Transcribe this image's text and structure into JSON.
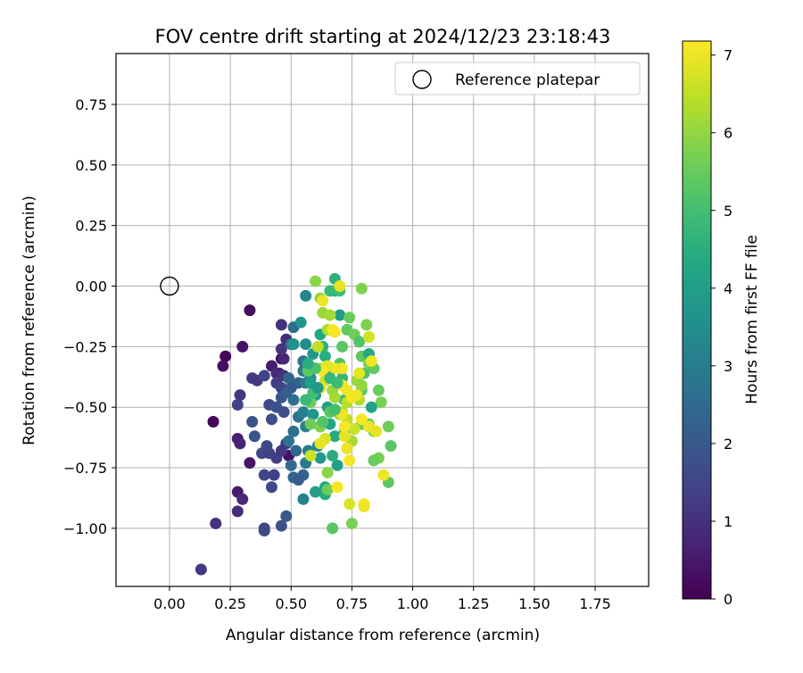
{
  "chart_data": {
    "type": "scatter",
    "title": "FOV centre drift starting at 2024/12/23 23:18:43",
    "xlabel": "Angular distance from reference (arcmin)",
    "ylabel": "Rotation from reference (arcmin)",
    "xlim": [
      -0.22,
      1.97
    ],
    "ylim": [
      -1.24,
      0.96
    ],
    "x_ticks": [
      0.0,
      0.25,
      0.5,
      0.75,
      1.0,
      1.25,
      1.5,
      1.75
    ],
    "x_tick_labels": [
      "0.00",
      "0.25",
      "0.50",
      "0.75",
      "1.00",
      "1.25",
      "1.50",
      "1.75"
    ],
    "y_ticks": [
      0.75,
      0.5,
      0.25,
      0.0,
      -0.25,
      -0.5,
      -0.75,
      -1.0
    ],
    "y_tick_labels": [
      "0.75",
      "0.50",
      "0.25",
      "0.00",
      "−0.25",
      "−0.50",
      "−0.75",
      "−1.00"
    ],
    "grid": true,
    "legend": {
      "placement": "top-right",
      "entries": [
        "Reference platepar"
      ]
    },
    "reference_point": {
      "x": 0.0,
      "y": 0.0,
      "label": "Reference platepar"
    },
    "colorbar": {
      "label": "Hours from first FF file",
      "colormap": "viridis",
      "range": [
        0,
        7.18
      ],
      "ticks": [
        0,
        1,
        2,
        3,
        4,
        5,
        6,
        7
      ],
      "tick_labels": [
        "0",
        "1",
        "2",
        "3",
        "4",
        "5",
        "6",
        "7"
      ]
    },
    "points": [
      [
        0.18,
        -0.56,
        0.1
      ],
      [
        0.23,
        -0.29,
        0.1
      ],
      [
        0.22,
        -0.33,
        0.3
      ],
      [
        0.33,
        -0.1,
        0.2
      ],
      [
        0.3,
        -0.25,
        0.4
      ],
      [
        0.46,
        -0.3,
        0.2
      ],
      [
        0.45,
        -0.36,
        0.3
      ],
      [
        0.49,
        -0.7,
        0.3
      ],
      [
        0.33,
        -0.73,
        0.4
      ],
      [
        0.28,
        -0.85,
        0.5
      ],
      [
        0.3,
        -0.88,
        0.8
      ],
      [
        0.28,
        -0.93,
        0.9
      ],
      [
        0.19,
        -0.98,
        1.0
      ],
      [
        0.13,
        -1.17,
        1.2
      ],
      [
        0.28,
        -0.63,
        0.6
      ],
      [
        0.29,
        -0.65,
        0.7
      ],
      [
        0.29,
        -0.45,
        1.2
      ],
      [
        0.28,
        -0.49,
        1.4
      ],
      [
        0.34,
        -0.38,
        1.3
      ],
      [
        0.36,
        -0.39,
        1.2
      ],
      [
        0.42,
        -0.33,
        0.6
      ],
      [
        0.44,
        -0.36,
        0.9
      ],
      [
        0.47,
        -0.3,
        0.8
      ],
      [
        0.48,
        -0.22,
        0.9
      ],
      [
        0.46,
        -0.16,
        1.0
      ],
      [
        0.46,
        -0.26,
        1.1
      ],
      [
        0.47,
        -0.37,
        1.0
      ],
      [
        0.44,
        -0.4,
        1.3
      ],
      [
        0.46,
        -0.42,
        1.4
      ],
      [
        0.39,
        -0.37,
        1.5
      ],
      [
        0.41,
        -0.49,
        1.6
      ],
      [
        0.42,
        -0.55,
        1.7
      ],
      [
        0.44,
        -0.5,
        1.8
      ],
      [
        0.47,
        -0.52,
        1.7
      ],
      [
        0.46,
        -0.46,
        1.9
      ],
      [
        0.34,
        -0.56,
        1.8
      ],
      [
        0.35,
        -0.62,
        1.9
      ],
      [
        0.38,
        -0.69,
        1.5
      ],
      [
        0.41,
        -0.69,
        1.4
      ],
      [
        0.4,
        -0.66,
        1.6
      ],
      [
        0.44,
        -0.71,
        1.3
      ],
      [
        0.46,
        -0.68,
        1.2
      ],
      [
        0.48,
        -0.65,
        1.1
      ],
      [
        0.39,
        -0.78,
        1.5
      ],
      [
        0.43,
        -0.78,
        1.4
      ],
      [
        0.42,
        -0.83,
        1.6
      ],
      [
        0.39,
        -1.0,
        1.5
      ],
      [
        0.39,
        -1.01,
        1.6
      ],
      [
        0.46,
        -0.99,
        1.8
      ],
      [
        0.48,
        -0.95,
        2.0
      ],
      [
        0.5,
        -0.74,
        2.5
      ],
      [
        0.51,
        -0.79,
        2.3
      ],
      [
        0.53,
        -0.8,
        2.1
      ],
      [
        0.55,
        -0.78,
        2.2
      ],
      [
        0.52,
        -0.68,
        2.4
      ],
      [
        0.51,
        -0.6,
        2.6
      ],
      [
        0.49,
        -0.64,
        2.7
      ],
      [
        0.53,
        -0.54,
        2.7
      ],
      [
        0.51,
        -0.47,
        2.6
      ],
      [
        0.53,
        -0.4,
        2.2
      ],
      [
        0.5,
        -0.42,
        2.0
      ],
      [
        0.48,
        -0.44,
        2.1
      ],
      [
        0.49,
        -0.38,
        2.3
      ],
      [
        0.5,
        -0.24,
        2.6
      ],
      [
        0.51,
        -0.17,
        2.5
      ],
      [
        0.55,
        -0.31,
        2.8
      ],
      [
        0.55,
        -0.35,
        2.9
      ],
      [
        0.56,
        -0.4,
        3.0
      ],
      [
        0.55,
        -0.52,
        3.1
      ],
      [
        0.56,
        -0.58,
        3.2
      ],
      [
        0.57,
        -0.68,
        3.0
      ],
      [
        0.56,
        -0.73,
        2.9
      ],
      [
        0.55,
        -0.88,
        3.2
      ],
      [
        0.51,
        -0.24,
        3.6
      ],
      [
        0.56,
        -0.04,
        3.3
      ],
      [
        0.54,
        -0.15,
        3.7
      ],
      [
        0.59,
        -0.28,
        3.8
      ],
      [
        0.58,
        -0.38,
        3.6
      ],
      [
        0.6,
        -0.45,
        3.9
      ],
      [
        0.59,
        -0.53,
        3.7
      ],
      [
        0.62,
        -0.58,
        3.5
      ],
      [
        0.61,
        -0.66,
        3.4
      ],
      [
        0.62,
        -0.71,
        3.8
      ],
      [
        0.6,
        -0.85,
        4.0
      ],
      [
        0.64,
        -0.83,
        4.2
      ],
      [
        0.64,
        -0.86,
        4.4
      ],
      [
        0.62,
        -0.2,
        4.3
      ],
      [
        0.63,
        -0.25,
        4.6
      ],
      [
        0.64,
        -0.29,
        4.5
      ],
      [
        0.65,
        -0.36,
        4.2
      ],
      [
        0.65,
        -0.5,
        4.1
      ],
      [
        0.66,
        -0.57,
        4.3
      ],
      [
        0.68,
        -0.62,
        4.4
      ],
      [
        0.67,
        -0.7,
        4.5
      ],
      [
        0.69,
        -0.74,
        4.1
      ],
      [
        0.68,
        -0.02,
        4.2
      ],
      [
        0.7,
        -0.12,
        4.0
      ],
      [
        0.68,
        0.03,
        4.6
      ],
      [
        0.66,
        -0.02,
        4.8
      ],
      [
        0.7,
        -0.02,
        5.0
      ],
      [
        0.71,
        -0.38,
        4.7
      ],
      [
        0.72,
        -0.47,
        4.8
      ],
      [
        0.72,
        -0.6,
        4.9
      ],
      [
        0.73,
        -0.67,
        5.0
      ],
      [
        0.7,
        -0.32,
        5.2
      ],
      [
        0.71,
        -0.25,
        5.3
      ],
      [
        0.73,
        -0.18,
        5.4
      ],
      [
        0.74,
        -0.13,
        5.5
      ],
      [
        0.76,
        -0.2,
        5.6
      ],
      [
        0.78,
        -0.23,
        5.2
      ],
      [
        0.79,
        -0.29,
        5.4
      ],
      [
        0.8,
        -0.36,
        5.1
      ],
      [
        0.79,
        -0.43,
        5.3
      ],
      [
        0.79,
        -0.57,
        5.5
      ],
      [
        0.82,
        -0.57,
        5.6
      ],
      [
        0.84,
        -0.6,
        5.8
      ],
      [
        0.86,
        -0.71,
        5.7
      ],
      [
        0.84,
        -0.72,
        5.5
      ],
      [
        0.9,
        -0.81,
        5.4
      ],
      [
        0.91,
        -0.66,
        5.3
      ],
      [
        0.9,
        -0.58,
        5.6
      ],
      [
        0.87,
        -0.48,
        5.7
      ],
      [
        0.86,
        -0.43,
        5.5
      ],
      [
        0.82,
        -0.28,
        4.3
      ],
      [
        0.83,
        -0.5,
        4.1
      ],
      [
        0.82,
        -0.32,
        5.7
      ],
      [
        0.84,
        -0.34,
        5.4
      ],
      [
        0.81,
        -0.16,
        5.8
      ],
      [
        0.79,
        -0.01,
        5.8
      ],
      [
        0.75,
        -0.98,
        5.7
      ],
      [
        0.67,
        -1.0,
        5.3
      ],
      [
        0.65,
        -0.84,
        5.6
      ],
      [
        0.65,
        -0.77,
        5.9
      ],
      [
        0.62,
        -0.58,
        5.8
      ],
      [
        0.6,
        0.02,
        5.9
      ],
      [
        0.62,
        -0.05,
        6.0
      ],
      [
        0.63,
        -0.11,
        6.1
      ],
      [
        0.66,
        -0.12,
        6.2
      ],
      [
        0.65,
        -0.18,
        6.3
      ],
      [
        0.62,
        -0.34,
        6.4
      ],
      [
        0.61,
        -0.25,
        6.5
      ],
      [
        0.64,
        -0.39,
        6.6
      ],
      [
        0.67,
        -0.43,
        6.1
      ],
      [
        0.68,
        -0.46,
        6.2
      ],
      [
        0.7,
        -0.53,
        6.0
      ],
      [
        0.71,
        -0.52,
        6.3
      ],
      [
        0.73,
        -0.48,
        6.4
      ],
      [
        0.73,
        -0.55,
        6.5
      ],
      [
        0.76,
        -0.59,
        6.6
      ],
      [
        0.75,
        -0.64,
        6.2
      ],
      [
        0.77,
        -0.39,
        6.1
      ],
      [
        0.79,
        -0.41,
        6.0
      ],
      [
        0.78,
        -0.47,
        6.3
      ],
      [
        0.82,
        -0.21,
        6.7
      ],
      [
        0.83,
        -0.31,
        7.0
      ],
      [
        0.79,
        -0.55,
        7.1
      ],
      [
        0.82,
        -0.58,
        7.0
      ],
      [
        0.85,
        -0.6,
        6.9
      ],
      [
        0.88,
        -0.78,
        7.0
      ],
      [
        0.8,
        -0.9,
        7.1
      ],
      [
        0.8,
        -0.91,
        7.0
      ],
      [
        0.74,
        -0.9,
        6.8
      ],
      [
        0.69,
        -0.83,
        7.1
      ],
      [
        0.74,
        -0.72,
        7.1
      ],
      [
        0.73,
        -0.67,
        7.0
      ],
      [
        0.72,
        -0.62,
        6.9
      ],
      [
        0.72,
        -0.58,
        7.1
      ],
      [
        0.71,
        -0.53,
        7.0
      ],
      [
        0.71,
        -0.41,
        7.1
      ],
      [
        0.73,
        -0.43,
        7.0
      ],
      [
        0.75,
        -0.46,
        7.1
      ],
      [
        0.77,
        -0.45,
        7.0
      ],
      [
        0.78,
        -0.36,
        6.9
      ],
      [
        0.71,
        -0.34,
        7.1
      ],
      [
        0.68,
        -0.34,
        7.0
      ],
      [
        0.65,
        -0.33,
        6.9
      ],
      [
        0.63,
        -0.35,
        7.1
      ],
      [
        0.62,
        -0.42,
        7.0
      ],
      [
        0.67,
        -0.18,
        7.0
      ],
      [
        0.68,
        -0.19,
        7.1
      ],
      [
        0.7,
        0.0,
        6.9
      ],
      [
        0.63,
        -0.06,
        7.0
      ],
      [
        0.64,
        -0.63,
        6.8
      ],
      [
        0.62,
        -0.65,
        6.9
      ],
      [
        0.58,
        -0.7,
        6.6
      ],
      [
        0.58,
        -0.48,
        5.5
      ],
      [
        0.57,
        -0.35,
        5.4
      ],
      [
        0.59,
        -0.44,
        5.0
      ],
      [
        0.56,
        -0.47,
        4.8
      ],
      [
        0.6,
        -0.34,
        5.1
      ],
      [
        0.58,
        -0.57,
        5.6
      ],
      [
        0.63,
        -0.56,
        5.2
      ],
      [
        0.66,
        -0.52,
        5.3
      ],
      [
        0.68,
        -0.51,
        5.0
      ],
      [
        0.69,
        -0.4,
        4.9
      ],
      [
        0.66,
        -0.38,
        4.7
      ],
      [
        0.57,
        -0.32,
        4.5
      ],
      [
        0.58,
        -0.4,
        4.0
      ],
      [
        0.61,
        -0.42,
        3.9
      ],
      [
        0.56,
        -0.24,
        3.5
      ]
    ]
  }
}
